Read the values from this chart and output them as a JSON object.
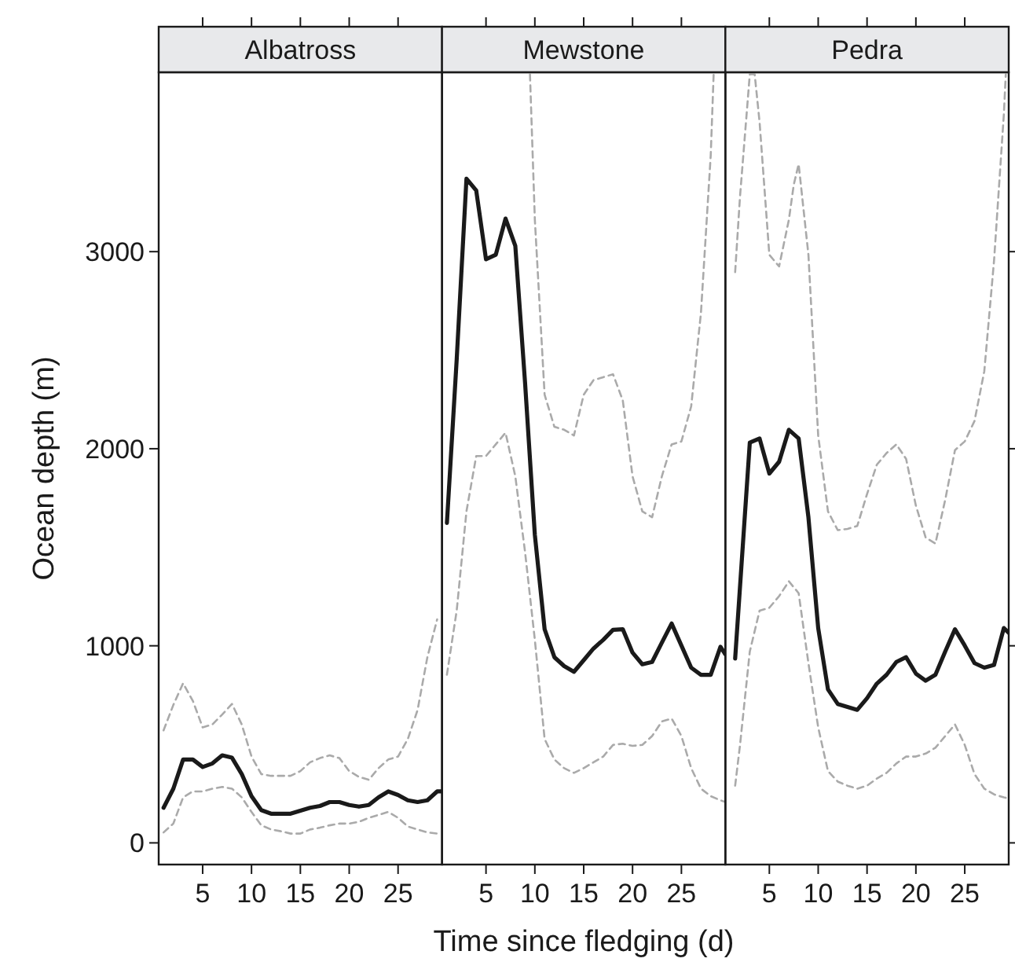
{
  "chart_data": [
    {
      "type": "line",
      "title": "Albatross",
      "ylabel": "Ocean depth (m)",
      "xlim": [
        0.5,
        29.5
      ],
      "xticks": [
        5,
        10,
        15,
        20,
        25
      ],
      "ylim": [
        -110,
        3910
      ],
      "yticks": [
        0,
        1000,
        2000,
        3000
      ],
      "tick_labels": "xy",
      "series": [
        {
          "color": "#aaaaaa",
          "line_style": "dashed",
          "x": [
            1,
            2,
            3,
            4,
            5,
            6,
            7,
            8,
            9,
            10,
            11,
            12,
            13,
            14,
            15,
            16,
            17,
            18,
            19,
            20,
            21,
            22,
            23,
            24,
            25,
            26,
            27,
            28,
            29
          ],
          "values": [
            571,
            700,
            810,
            720,
            586,
            601,
            651,
            705,
            601,
            438,
            349,
            340,
            340,
            340,
            364,
            409,
            430,
            444,
            430,
            364,
            335,
            320,
            379,
            423,
            438,
            527,
            675,
            942,
            1134
          ]
        },
        {
          "color": "#aaaaaa",
          "line_style": "dashed",
          "x": [
            1,
            2,
            3,
            4,
            5,
            6,
            7,
            8,
            9,
            10,
            11,
            12,
            13,
            14,
            15,
            16,
            17,
            18,
            19,
            20,
            21,
            22,
            23,
            24,
            25,
            26,
            27,
            28,
            29
          ],
          "values": [
            53,
            98,
            231,
            261,
            261,
            275,
            284,
            275,
            231,
            157,
            89,
            68,
            59,
            47,
            47,
            68,
            77,
            89,
            98,
            98,
            107,
            127,
            142,
            157,
            127,
            83,
            68,
            53,
            47
          ]
        },
        {
          "color": "#1a1a1a",
          "line_style": "solid",
          "x": [
            1,
            2,
            3,
            4,
            5,
            6,
            7,
            8,
            9,
            10,
            11,
            12,
            13,
            14,
            15,
            16,
            17,
            18,
            19,
            20,
            21,
            22,
            23,
            24,
            25,
            26,
            27,
            28,
            29,
            29.5
          ],
          "values": [
            178,
            275,
            423,
            423,
            385,
            403,
            444,
            432,
            349,
            237,
            166,
            148,
            148,
            148,
            163,
            178,
            187,
            207,
            207,
            192,
            184,
            192,
            231,
            261,
            243,
            216,
            207,
            216,
            261,
            261
          ]
        }
      ]
    },
    {
      "type": "line",
      "title": "Mewstone",
      "xlabel": "Time since fledging (d)",
      "xlim": [
        0.5,
        29.5
      ],
      "xticks": [
        5,
        10,
        15,
        20,
        25
      ],
      "ylim": [
        -110,
        3910
      ],
      "yticks": [
        0,
        1000,
        2000,
        3000
      ],
      "tick_labels": "x",
      "series": [
        {
          "color": "#aaaaaa",
          "line_style": "dashed",
          "x": [
            9.5,
            10,
            11,
            12,
            13,
            14,
            15,
            16,
            17,
            18,
            19,
            20,
            21,
            22,
            23,
            24,
            25,
            26,
            27,
            28,
            28.3
          ],
          "values": [
            3900,
            3162,
            2274,
            2111,
            2096,
            2067,
            2274,
            2348,
            2363,
            2378,
            2245,
            1860,
            1682,
            1652,
            1860,
            2022,
            2037,
            2215,
            2689,
            3488,
            3900
          ]
        },
        {
          "color": "#aaaaaa",
          "line_style": "dashed",
          "x": [
            1,
            2,
            3,
            4,
            5,
            6,
            7,
            8,
            9,
            10,
            11,
            12,
            13,
            14,
            15,
            16,
            17,
            18,
            19,
            20,
            21,
            22,
            23,
            24,
            25,
            26,
            27,
            28,
            29,
            29.5
          ],
          "values": [
            853,
            1178,
            1682,
            1963,
            1963,
            2022,
            2081,
            1860,
            1475,
            1030,
            527,
            423,
            379,
            355,
            379,
            409,
            438,
            497,
            503,
            492,
            497,
            542,
            616,
            631,
            542,
            379,
            275,
            237,
            216,
            207
          ]
        },
        {
          "color": "#1a1a1a",
          "line_style": "solid",
          "x": [
            1,
            2,
            3,
            4,
            5,
            6,
            7,
            8,
            9,
            10,
            11,
            12,
            13,
            14,
            15,
            16,
            17,
            18,
            19,
            20,
            21,
            22,
            23,
            24,
            25,
            26,
            27,
            28,
            29,
            29.5
          ],
          "values": [
            1623,
            2452,
            3370,
            3310,
            2961,
            2984,
            3168,
            3029,
            2333,
            1563,
            1084,
            942,
            897,
            868,
            927,
            986,
            1030,
            1081,
            1084,
            965,
            906,
            918,
            1016,
            1113,
            1001,
            889,
            853,
            853,
            995,
            956
          ]
        }
      ]
    },
    {
      "type": "line",
      "title": "Pedra",
      "xlim": [
        0.5,
        29.5
      ],
      "xticks": [
        5,
        10,
        15,
        20,
        25
      ],
      "ylim": [
        -110,
        3910
      ],
      "yticks": [
        0,
        1000,
        2000,
        3000
      ],
      "tick_labels": "x",
      "series": [
        {
          "color": "#aaaaaa",
          "line_style": "dashed",
          "x": [
            1.5,
            2,
            3,
            3.5,
            4,
            5,
            6,
            7,
            7.5,
            8,
            9,
            10,
            11,
            12,
            13,
            14,
            15,
            16,
            17,
            18,
            19,
            20,
            21,
            22,
            23,
            24,
            25,
            26,
            27,
            28,
            29,
            29.2
          ],
          "values": [
            2896,
            3281,
            3900,
            3900,
            3658,
            2984,
            2925,
            3162,
            3340,
            3444,
            2984,
            2067,
            1682,
            1587,
            1593,
            1608,
            1770,
            1919,
            1978,
            2022,
            1948,
            1711,
            1549,
            1519,
            1741,
            1993,
            2037,
            2141,
            2393,
            2955,
            3695,
            3900
          ]
        },
        {
          "color": "#aaaaaa",
          "line_style": "dashed",
          "x": [
            1.5,
            2,
            3,
            4,
            5,
            6,
            7,
            8,
            9,
            10,
            11,
            12,
            13,
            14,
            15,
            16,
            17,
            18,
            19,
            20,
            21,
            22,
            23,
            24,
            25,
            26,
            27,
            28,
            29,
            29.5
          ],
          "values": [
            290,
            497,
            971,
            1178,
            1193,
            1252,
            1327,
            1267,
            912,
            586,
            364,
            311,
            290,
            275,
            290,
            326,
            355,
            403,
            438,
            438,
            453,
            483,
            542,
            601,
            497,
            349,
            275,
            246,
            231,
            225
          ]
        },
        {
          "color": "#1a1a1a",
          "line_style": "solid",
          "x": [
            1.5,
            3,
            4,
            5,
            6,
            7,
            8,
            9,
            10,
            11,
            12,
            13,
            14,
            15,
            16,
            17,
            18,
            19,
            20,
            21,
            22,
            23,
            24,
            25,
            26,
            27,
            28,
            29,
            29.5
          ],
          "values": [
            935,
            2031,
            2052,
            1874,
            1934,
            2096,
            2052,
            1652,
            1090,
            779,
            705,
            690,
            675,
            734,
            808,
            853,
            918,
            942,
            859,
            823,
            853,
            971,
            1084,
            1001,
            912,
            889,
            903,
            1090,
            1066
          ]
        }
      ]
    }
  ]
}
